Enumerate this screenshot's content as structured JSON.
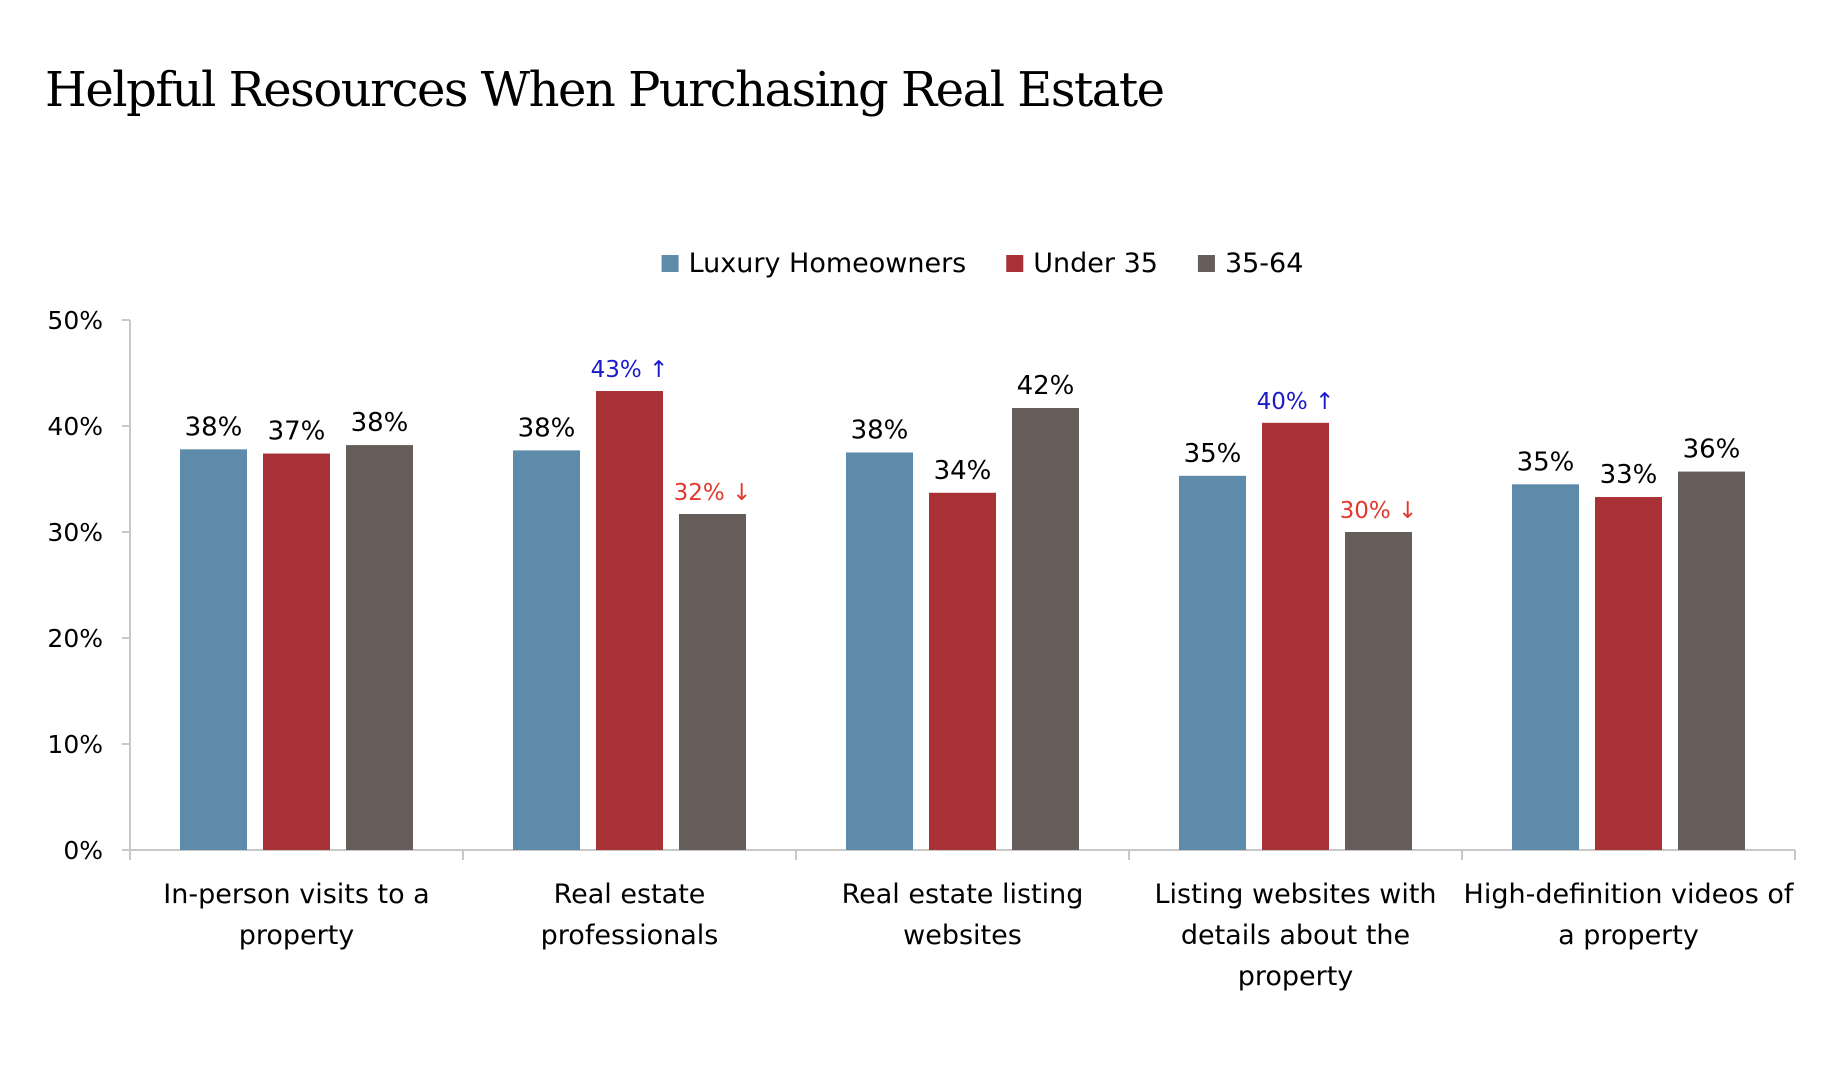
{
  "page": {
    "title": "Helpful Resources When Purchasing Real Estate"
  },
  "chart_data": {
    "type": "bar",
    "title": "Helpful Resources When Purchasing Real Estate",
    "xlabel": "",
    "ylabel": "",
    "ylim": [
      0,
      50
    ],
    "y_ticks": [
      "0%",
      "10%",
      "20%",
      "30%",
      "40%",
      "50%"
    ],
    "y_tick_values": [
      0,
      10,
      20,
      30,
      40,
      50
    ],
    "grid": false,
    "legend_position": "top",
    "categories": [
      [
        "In-person visits to a",
        "property"
      ],
      [
        "Real estate",
        "professionals"
      ],
      [
        "Real estate listing",
        "websites"
      ],
      [
        "Listing websites with",
        "details about the",
        "property"
      ],
      [
        "High-definition videos of",
        "a property"
      ]
    ],
    "series": [
      {
        "name": "Luxury Homeowners",
        "color": "#5f8bab",
        "values": [
          38,
          38,
          38,
          35,
          35
        ],
        "bar_values": [
          37.8,
          37.7,
          37.5,
          35.3,
          34.5
        ],
        "labels": [
          "38%",
          "38%",
          "38%",
          "35%",
          "35%"
        ],
        "label_colors": [
          "#000000",
          "#000000",
          "#000000",
          "#000000",
          "#000000"
        ]
      },
      {
        "name": "Under 35",
        "color": "#a83135",
        "values": [
          37,
          43,
          34,
          40,
          33
        ],
        "bar_values": [
          37.4,
          43.3,
          33.7,
          40.3,
          33.3
        ],
        "labels": [
          "37%",
          "43% ↑",
          "34%",
          "40% ↑",
          "33%"
        ],
        "label_colors": [
          "#000000",
          "#1a1ac8",
          "#000000",
          "#1a1ac8",
          "#000000"
        ]
      },
      {
        "name": "35-64",
        "color": "#665d5a",
        "values": [
          38,
          32,
          42,
          30,
          36
        ],
        "bar_values": [
          38.2,
          31.7,
          41.7,
          30.0,
          35.7
        ],
        "labels": [
          "38%",
          "32% ↓",
          "42%",
          "30% ↓",
          "36%"
        ],
        "label_colors": [
          "#000000",
          "#e03a2f",
          "#000000",
          "#e03a2f",
          "#000000"
        ]
      }
    ],
    "axis_color": "#c8c8c8"
  }
}
